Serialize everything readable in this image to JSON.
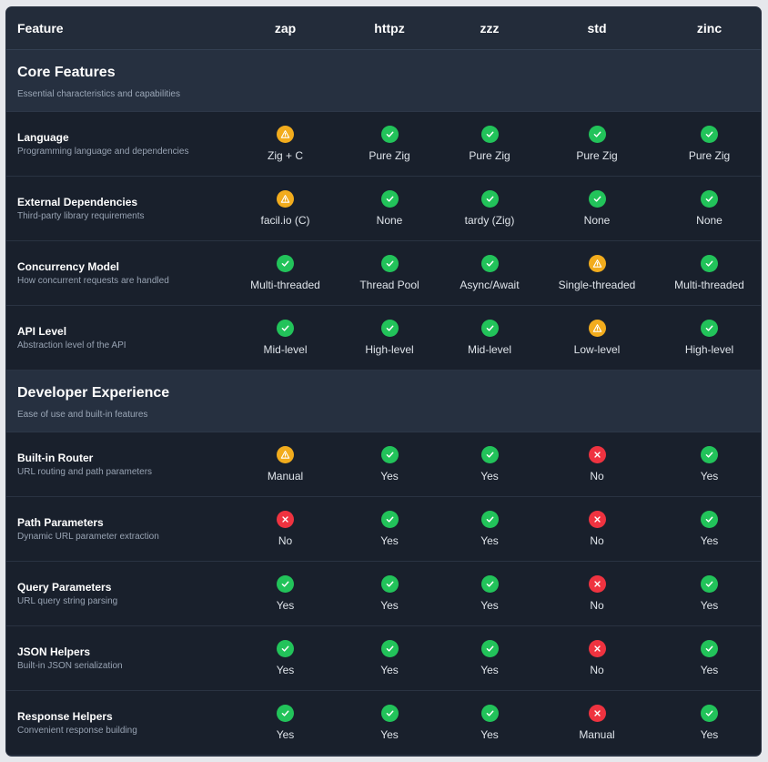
{
  "header": {
    "feature_label": "Feature",
    "columns": [
      "zap",
      "httpz",
      "zzz",
      "std",
      "zinc"
    ]
  },
  "colors": {
    "check": "#22c35a",
    "warning": "#f2ac1d",
    "cross": "#ef3340"
  },
  "sections": [
    {
      "title": "Core Features",
      "subtitle": "Essential characteristics and capabilities",
      "rows": [
        {
          "name": "Language",
          "desc": "Programming language and dependencies",
          "cells": [
            {
              "status": "warning",
              "text": "Zig + C"
            },
            {
              "status": "check",
              "text": "Pure Zig"
            },
            {
              "status": "check",
              "text": "Pure Zig"
            },
            {
              "status": "check",
              "text": "Pure Zig"
            },
            {
              "status": "check",
              "text": "Pure Zig"
            }
          ]
        },
        {
          "name": "External Dependencies",
          "desc": "Third-party library requirements",
          "cells": [
            {
              "status": "warning",
              "text": "facil.io (C)"
            },
            {
              "status": "check",
              "text": "None"
            },
            {
              "status": "check",
              "text": "tardy (Zig)"
            },
            {
              "status": "check",
              "text": "None"
            },
            {
              "status": "check",
              "text": "None"
            }
          ]
        },
        {
          "name": "Concurrency Model",
          "desc": "How concurrent requests are handled",
          "cells": [
            {
              "status": "check",
              "text": "Multi-threaded"
            },
            {
              "status": "check",
              "text": "Thread Pool"
            },
            {
              "status": "check",
              "text": "Async/Await"
            },
            {
              "status": "warning",
              "text": "Single-threaded"
            },
            {
              "status": "check",
              "text": "Multi-threaded"
            }
          ]
        },
        {
          "name": "API Level",
          "desc": "Abstraction level of the API",
          "cells": [
            {
              "status": "check",
              "text": "Mid-level"
            },
            {
              "status": "check",
              "text": "High-level"
            },
            {
              "status": "check",
              "text": "Mid-level"
            },
            {
              "status": "warning",
              "text": "Low-level"
            },
            {
              "status": "check",
              "text": "High-level"
            }
          ]
        }
      ]
    },
    {
      "title": "Developer Experience",
      "subtitle": "Ease of use and built-in features",
      "rows": [
        {
          "name": "Built-in Router",
          "desc": "URL routing and path parameters",
          "cells": [
            {
              "status": "warning",
              "text": "Manual"
            },
            {
              "status": "check",
              "text": "Yes"
            },
            {
              "status": "check",
              "text": "Yes"
            },
            {
              "status": "cross",
              "text": "No"
            },
            {
              "status": "check",
              "text": "Yes"
            }
          ]
        },
        {
          "name": "Path Parameters",
          "desc": "Dynamic URL parameter extraction",
          "cells": [
            {
              "status": "cross",
              "text": "No"
            },
            {
              "status": "check",
              "text": "Yes"
            },
            {
              "status": "check",
              "text": "Yes"
            },
            {
              "status": "cross",
              "text": "No"
            },
            {
              "status": "check",
              "text": "Yes"
            }
          ]
        },
        {
          "name": "Query Parameters",
          "desc": "URL query string parsing",
          "cells": [
            {
              "status": "check",
              "text": "Yes"
            },
            {
              "status": "check",
              "text": "Yes"
            },
            {
              "status": "check",
              "text": "Yes"
            },
            {
              "status": "cross",
              "text": "No"
            },
            {
              "status": "check",
              "text": "Yes"
            }
          ]
        },
        {
          "name": "JSON Helpers",
          "desc": "Built-in JSON serialization",
          "cells": [
            {
              "status": "check",
              "text": "Yes"
            },
            {
              "status": "check",
              "text": "Yes"
            },
            {
              "status": "check",
              "text": "Yes"
            },
            {
              "status": "cross",
              "text": "No"
            },
            {
              "status": "check",
              "text": "Yes"
            }
          ]
        },
        {
          "name": "Response Helpers",
          "desc": "Convenient response building",
          "cells": [
            {
              "status": "check",
              "text": "Yes"
            },
            {
              "status": "check",
              "text": "Yes"
            },
            {
              "status": "check",
              "text": "Yes"
            },
            {
              "status": "cross",
              "text": "Manual"
            },
            {
              "status": "check",
              "text": "Yes"
            }
          ]
        }
      ]
    }
  ]
}
